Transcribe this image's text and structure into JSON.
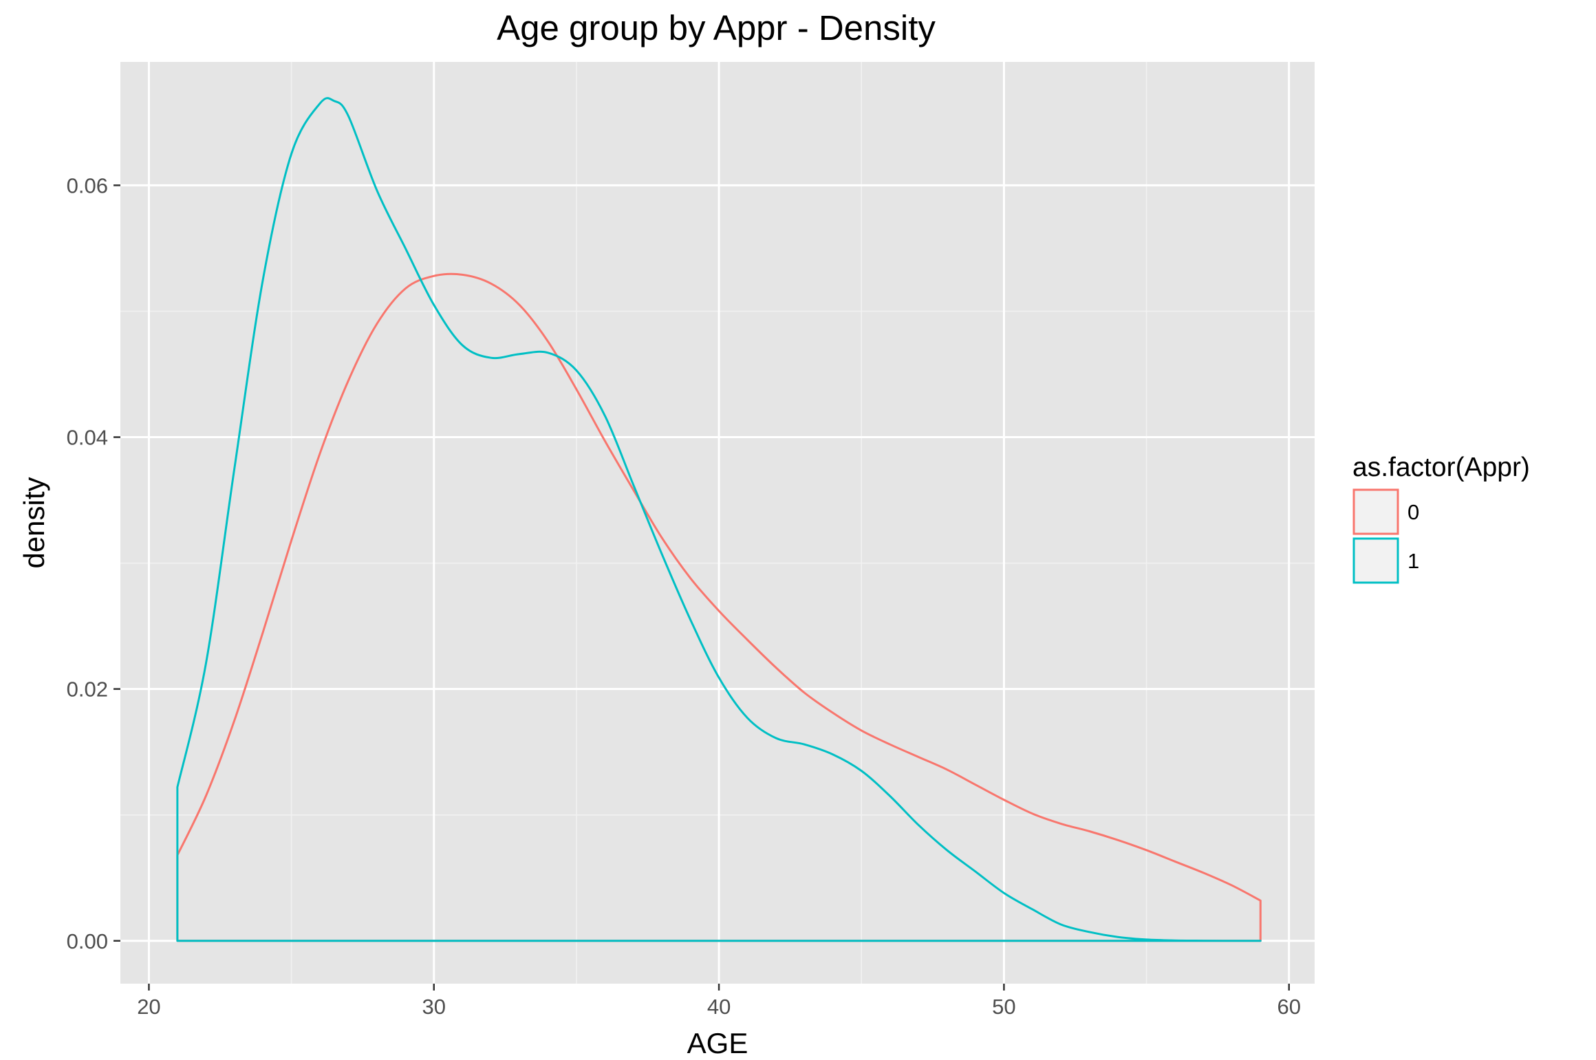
{
  "chart_data": {
    "type": "area",
    "title": "Age group by Appr - Density",
    "xlabel": "AGE",
    "ylabel": "density",
    "xlim": [
      19.0,
      60.9
    ],
    "ylim": [
      -0.0034,
      0.0698
    ],
    "x_ticks": [
      20,
      30,
      40,
      50,
      60
    ],
    "x_tick_labels": [
      "20",
      "30",
      "40",
      "50",
      "60"
    ],
    "y_ticks": [
      0.0,
      0.02,
      0.04,
      0.06
    ],
    "y_tick_labels": [
      "0.00",
      "0.02",
      "0.04",
      "0.06"
    ],
    "grid": true,
    "background": "#e5e5e5",
    "legend": {
      "title": "as.factor(Appr)",
      "position": "right"
    },
    "series": [
      {
        "name": "0",
        "color": "#f8766d",
        "x": [
          21,
          22,
          23,
          24,
          25,
          26,
          27,
          28,
          29,
          30,
          31,
          32,
          33,
          34,
          35,
          36,
          37,
          38,
          39,
          40,
          41,
          42,
          43,
          44,
          45,
          46,
          47,
          48,
          49,
          50,
          51,
          52,
          53,
          54,
          55,
          56,
          57,
          58,
          59
        ],
        "y": [
          0.0068,
          0.0115,
          0.0175,
          0.0245,
          0.0318,
          0.0387,
          0.0445,
          0.049,
          0.0518,
          0.0528,
          0.0529,
          0.0522,
          0.0505,
          0.0476,
          0.0438,
          0.0397,
          0.0358,
          0.032,
          0.0288,
          0.0262,
          0.0239,
          0.0217,
          0.0197,
          0.0181,
          0.0167,
          0.0156,
          0.0146,
          0.0136,
          0.0124,
          0.0112,
          0.0101,
          0.0093,
          0.0087,
          0.008,
          0.0072,
          0.0063,
          0.0054,
          0.0044,
          0.0032
        ]
      },
      {
        "name": "1",
        "color": "#00bfc4",
        "x": [
          21,
          22,
          23,
          24,
          25,
          26,
          26.5,
          27,
          28,
          29,
          30,
          31,
          32,
          33,
          34,
          35,
          36,
          37,
          38,
          39,
          40,
          41,
          42,
          43,
          44,
          45,
          46,
          47,
          48,
          49,
          50,
          51,
          52,
          53,
          54,
          55,
          56,
          57,
          58,
          59
        ],
        "y": [
          0.0122,
          0.022,
          0.0375,
          0.0525,
          0.0625,
          0.0665,
          0.0667,
          0.0655,
          0.0596,
          0.055,
          0.0505,
          0.0473,
          0.0463,
          0.0466,
          0.0467,
          0.0453,
          0.0417,
          0.0362,
          0.0307,
          0.0255,
          0.0209,
          0.0177,
          0.0161,
          0.0156,
          0.0148,
          0.0135,
          0.0115,
          0.0092,
          0.0072,
          0.0055,
          0.0038,
          0.0025,
          0.0013,
          0.0007,
          0.0003,
          0.0001,
          3e-05,
          1e-05,
          0.0,
          0.0
        ]
      }
    ]
  }
}
